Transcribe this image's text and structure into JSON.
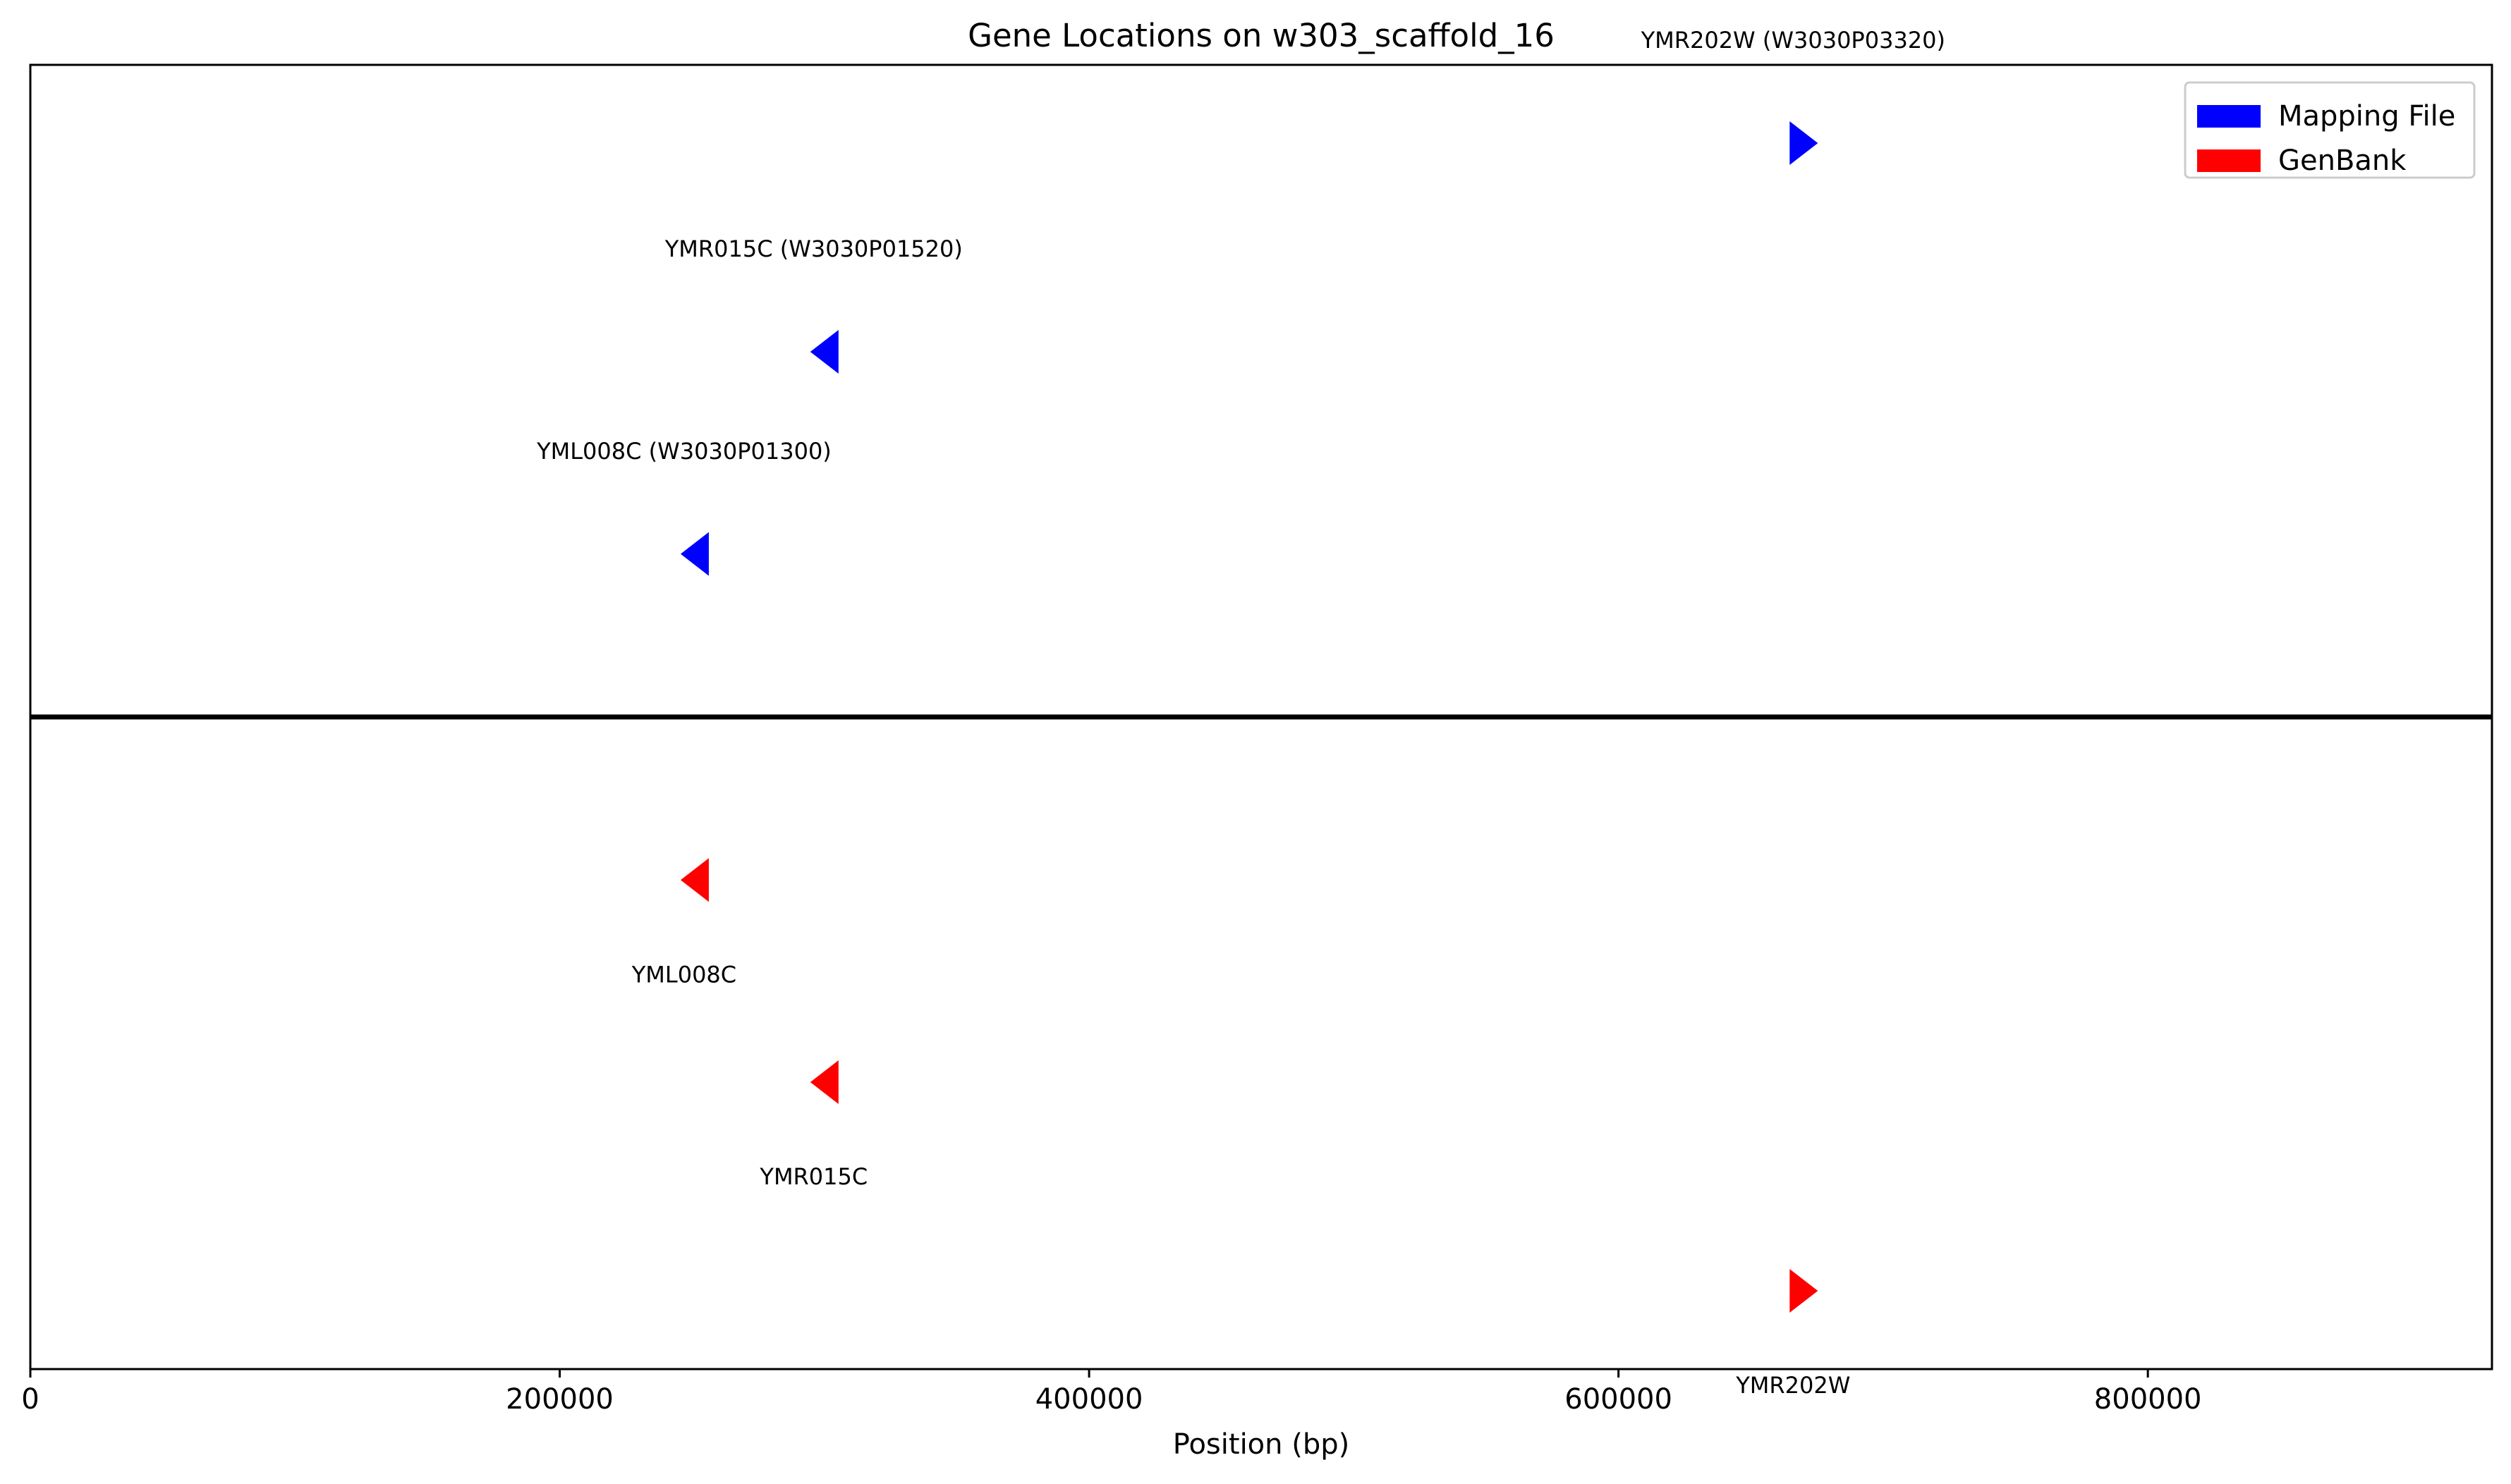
{
  "chart_data": {
    "type": "scatter",
    "title": "Gene Locations on w303_scaffold_16",
    "xlabel": "Position (bp)",
    "ylabel": "",
    "xlim": [
      0,
      930000
    ],
    "x_ticks": [
      0,
      200000,
      400000,
      600000,
      800000
    ],
    "x_tick_labels": [
      "0",
      "200000",
      "400000",
      "600000",
      "800000"
    ],
    "legend": {
      "placement": "top-right",
      "entries": [
        {
          "name": "Mapping File",
          "color": "#0000ff"
        },
        {
          "name": "GenBank",
          "color": "#ff0000"
        }
      ]
    },
    "series": [
      {
        "name": "Mapping File",
        "color": "#0000ff",
        "points": [
          {
            "label": "YMR202W (W3030P03320)",
            "x": 670000,
            "strand": "+",
            "y": 0.94
          },
          {
            "label": "YMR015C (W3030P01520)",
            "x": 300000,
            "strand": "-",
            "y": 0.78
          },
          {
            "label": "YML008C (W3030P01300)",
            "x": 251000,
            "strand": "-",
            "y": 0.625
          }
        ]
      },
      {
        "name": "GenBank",
        "color": "#ff0000",
        "points": [
          {
            "label": "YML008C",
            "x": 251000,
            "strand": "-",
            "y": 0.375
          },
          {
            "label": "YMR015C",
            "x": 300000,
            "strand": "-",
            "y": 0.22
          },
          {
            "label": "YMR202W",
            "x": 670000,
            "strand": "+",
            "y": 0.06
          }
        ]
      }
    ]
  }
}
